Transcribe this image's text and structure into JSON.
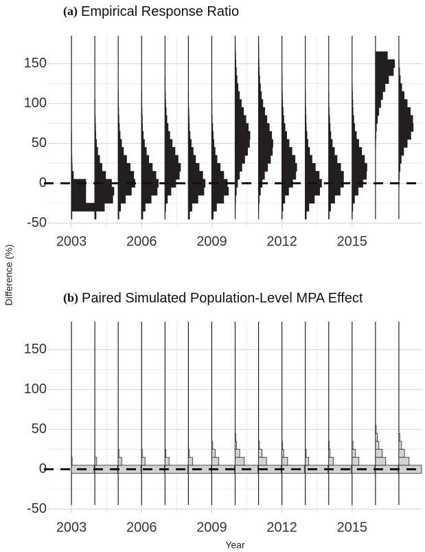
{
  "chart_data": [
    {
      "type": "histogram",
      "panel": "(a)",
      "title": "Empirical Response Ratio",
      "ylabel": "Difference (%)",
      "x": [
        2003,
        2004,
        2005,
        2006,
        2007,
        2008,
        2009,
        2010,
        2011,
        2012,
        2013,
        2014,
        2015,
        2016,
        2017
      ],
      "bins": [
        -45,
        -35,
        -25,
        -15,
        -5,
        5,
        15,
        25,
        35,
        45,
        55,
        65,
        75,
        85,
        95,
        105,
        115,
        125,
        135,
        145,
        155,
        165,
        175,
        185
      ],
      "counts": [
        [
          2,
          95,
          60,
          60,
          60,
          8,
          3,
          2,
          1,
          1,
          1,
          0,
          0,
          0,
          0,
          0,
          0,
          0,
          0,
          0,
          0,
          0,
          0
        ],
        [
          5,
          40,
          75,
          80,
          70,
          45,
          30,
          20,
          12,
          7,
          4,
          3,
          2,
          1,
          1,
          0,
          0,
          0,
          0,
          0,
          0,
          0,
          0
        ],
        [
          3,
          10,
          30,
          55,
          70,
          65,
          50,
          35,
          22,
          14,
          8,
          5,
          3,
          2,
          1,
          1,
          0,
          0,
          0,
          0,
          0,
          0,
          0
        ],
        [
          5,
          15,
          40,
          65,
          70,
          60,
          45,
          30,
          20,
          12,
          7,
          4,
          3,
          2,
          1,
          1,
          0,
          0,
          0,
          0,
          0,
          0,
          0
        ],
        [
          1,
          3,
          10,
          25,
          45,
          60,
          65,
          55,
          42,
          30,
          20,
          13,
          8,
          5,
          3,
          2,
          1,
          1,
          0,
          0,
          0,
          0,
          0
        ],
        [
          5,
          15,
          40,
          65,
          70,
          60,
          45,
          30,
          20,
          12,
          7,
          4,
          3,
          2,
          1,
          1,
          0,
          0,
          0,
          0,
          0,
          0,
          0
        ],
        [
          6,
          20,
          50,
          70,
          65,
          50,
          35,
          22,
          14,
          9,
          6,
          4,
          2,
          1,
          1,
          0,
          0,
          0,
          0,
          0,
          0,
          0,
          0
        ],
        [
          0,
          1,
          2,
          5,
          10,
          18,
          28,
          40,
          52,
          60,
          62,
          55,
          45,
          35,
          26,
          18,
          12,
          8,
          5,
          3,
          2,
          1,
          0
        ],
        [
          0,
          1,
          3,
          8,
          15,
          25,
          38,
          50,
          58,
          60,
          55,
          45,
          35,
          26,
          18,
          12,
          8,
          5,
          3,
          2,
          1,
          1,
          0
        ],
        [
          1,
          4,
          12,
          28,
          45,
          58,
          62,
          55,
          42,
          30,
          20,
          13,
          8,
          5,
          3,
          2,
          1,
          1,
          0,
          0,
          0,
          0,
          0
        ],
        [
          4,
          15,
          38,
          60,
          68,
          58,
          42,
          28,
          18,
          11,
          7,
          4,
          3,
          2,
          1,
          1,
          0,
          0,
          0,
          0,
          0,
          0,
          0
        ],
        [
          2,
          8,
          25,
          48,
          62,
          62,
          50,
          35,
          24,
          15,
          9,
          6,
          4,
          2,
          1,
          1,
          0,
          0,
          0,
          0,
          0,
          0,
          0
        ],
        [
          1,
          3,
          10,
          25,
          45,
          60,
          62,
          52,
          40,
          28,
          18,
          11,
          7,
          4,
          3,
          2,
          1,
          0,
          0,
          0,
          0,
          0,
          0
        ],
        [
          0,
          0,
          0,
          0,
          0,
          0,
          0,
          0,
          0,
          1,
          2,
          4,
          8,
          14,
          22,
          30,
          40,
          55,
          75,
          80,
          50,
          0,
          0
        ],
        [
          0,
          0,
          0,
          0,
          1,
          2,
          5,
          10,
          20,
          35,
          50,
          60,
          58,
          48,
          35,
          22,
          12,
          6,
          3,
          1,
          0,
          0,
          0
        ]
      ],
      "color": "#231f20",
      "edgecolor": "#231f20",
      "xlim": [
        2002,
        2018
      ],
      "ylim": [
        -55,
        185
      ],
      "xticks": [
        2003,
        2006,
        2009,
        2012,
        2015
      ],
      "yticks": [
        -50,
        0,
        50,
        100,
        150
      ],
      "hline": 0,
      "grid": true
    },
    {
      "type": "histogram",
      "panel": "(b)",
      "title": "Paired Simulated Population-Level MPA Effect",
      "xlabel": "Year",
      "x": [
        2003,
        2004,
        2005,
        2006,
        2007,
        2008,
        2009,
        2010,
        2011,
        2012,
        2013,
        2014,
        2015,
        2016,
        2017
      ],
      "bins": [
        -45,
        -35,
        -25,
        -15,
        -5,
        5,
        15,
        25,
        35,
        45,
        55,
        65,
        75,
        85,
        95,
        105,
        115,
        125,
        135,
        145,
        155,
        165,
        175,
        185
      ],
      "counts": [
        [
          0,
          0,
          0,
          0,
          100,
          3,
          0,
          0,
          0,
          0,
          0,
          0,
          0,
          0,
          0,
          0,
          0,
          0,
          0,
          0,
          0,
          0,
          0
        ],
        [
          0,
          0,
          0,
          0,
          100,
          8,
          0,
          0,
          0,
          0,
          0,
          0,
          0,
          0,
          0,
          0,
          0,
          0,
          0,
          0,
          0,
          0,
          0
        ],
        [
          0,
          0,
          0,
          0,
          100,
          15,
          3,
          0,
          0,
          0,
          0,
          0,
          0,
          0,
          0,
          0,
          0,
          0,
          0,
          0,
          0,
          0,
          0
        ],
        [
          0,
          0,
          0,
          0,
          100,
          15,
          3,
          0,
          0,
          0,
          0,
          0,
          0,
          0,
          0,
          0,
          0,
          0,
          0,
          0,
          0,
          0,
          0
        ],
        [
          0,
          0,
          0,
          0,
          100,
          18,
          4,
          0,
          0,
          0,
          0,
          0,
          0,
          0,
          0,
          0,
          0,
          0,
          0,
          0,
          0,
          0,
          0
        ],
        [
          0,
          0,
          0,
          0,
          100,
          18,
          4,
          0,
          0,
          0,
          0,
          0,
          0,
          0,
          0,
          0,
          0,
          0,
          0,
          0,
          0,
          0,
          0
        ],
        [
          0,
          0,
          0,
          0,
          100,
          30,
          15,
          4,
          0,
          0,
          0,
          0,
          0,
          0,
          0,
          0,
          0,
          0,
          0,
          0,
          0,
          0,
          0
        ],
        [
          0,
          0,
          0,
          0,
          100,
          40,
          20,
          6,
          2,
          0,
          0,
          0,
          0,
          0,
          0,
          0,
          0,
          0,
          0,
          0,
          0,
          0,
          0
        ],
        [
          0,
          0,
          0,
          0,
          100,
          35,
          15,
          4,
          0,
          0,
          0,
          0,
          0,
          0,
          0,
          0,
          0,
          0,
          0,
          0,
          0,
          0,
          0
        ],
        [
          0,
          0,
          0,
          0,
          100,
          25,
          8,
          2,
          0,
          0,
          0,
          0,
          0,
          0,
          0,
          0,
          0,
          0,
          0,
          0,
          0,
          0,
          0
        ],
        [
          0,
          0,
          0,
          0,
          100,
          15,
          4,
          0,
          0,
          0,
          0,
          0,
          0,
          0,
          0,
          0,
          0,
          0,
          0,
          0,
          0,
          0,
          0
        ],
        [
          0,
          0,
          0,
          0,
          100,
          20,
          6,
          2,
          0,
          0,
          0,
          0,
          0,
          0,
          0,
          0,
          0,
          0,
          0,
          0,
          0,
          0,
          0
        ],
        [
          0,
          0,
          0,
          0,
          100,
          30,
          15,
          4,
          0,
          0,
          0,
          0,
          0,
          0,
          0,
          0,
          0,
          0,
          0,
          0,
          0,
          0,
          0
        ],
        [
          0,
          0,
          0,
          0,
          100,
          45,
          30,
          15,
          8,
          3,
          0,
          0,
          0,
          0,
          0,
          0,
          0,
          0,
          0,
          0,
          0,
          0,
          0
        ],
        [
          0,
          0,
          0,
          0,
          100,
          45,
          25,
          12,
          4,
          0,
          0,
          0,
          0,
          0,
          0,
          0,
          0,
          0,
          0,
          0,
          0,
          0,
          0
        ]
      ],
      "color": "#d3d3d3",
      "edgecolor": "#231f20",
      "xlim": [
        2002,
        2018
      ],
      "ylim": [
        -55,
        185
      ],
      "xticks": [
        2003,
        2006,
        2009,
        2012,
        2015
      ],
      "yticks": [
        -50,
        0,
        50,
        100,
        150
      ],
      "hline": 0,
      "grid": true
    }
  ]
}
